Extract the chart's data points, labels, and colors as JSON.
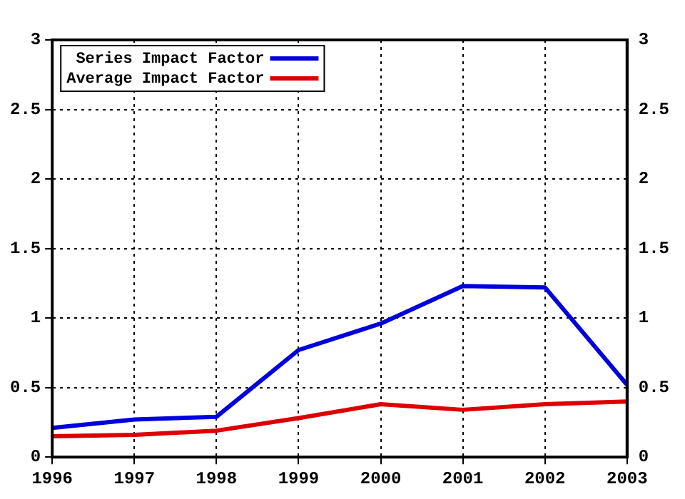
{
  "chart_data": {
    "type": "line",
    "x": [
      1996,
      1997,
      1998,
      1999,
      2000,
      2001,
      2002,
      2003
    ],
    "series": [
      {
        "name": "Series Impact Factor",
        "color": "#0000dd",
        "values": [
          0.21,
          0.27,
          0.29,
          0.77,
          0.96,
          1.23,
          1.22,
          0.52
        ]
      },
      {
        "name": "Average Impact Factor",
        "color": "#dd0000",
        "values": [
          0.15,
          0.16,
          0.19,
          0.28,
          0.38,
          0.34,
          0.38,
          0.4
        ]
      }
    ],
    "xlim": [
      1996,
      2003
    ],
    "xticks": [
      1996,
      1997,
      1998,
      1999,
      2000,
      2001,
      2002,
      2003
    ],
    "ylim": [
      0,
      3
    ],
    "yticks": [
      0,
      0.5,
      1,
      1.5,
      2,
      2.5,
      3
    ],
    "y2lim": [
      0,
      3
    ],
    "y2ticks": [
      0,
      0.5,
      1,
      1.5,
      2,
      2.5,
      3
    ],
    "grid": true,
    "legend": "top left",
    "marker": "none",
    "line_style": "solid"
  }
}
